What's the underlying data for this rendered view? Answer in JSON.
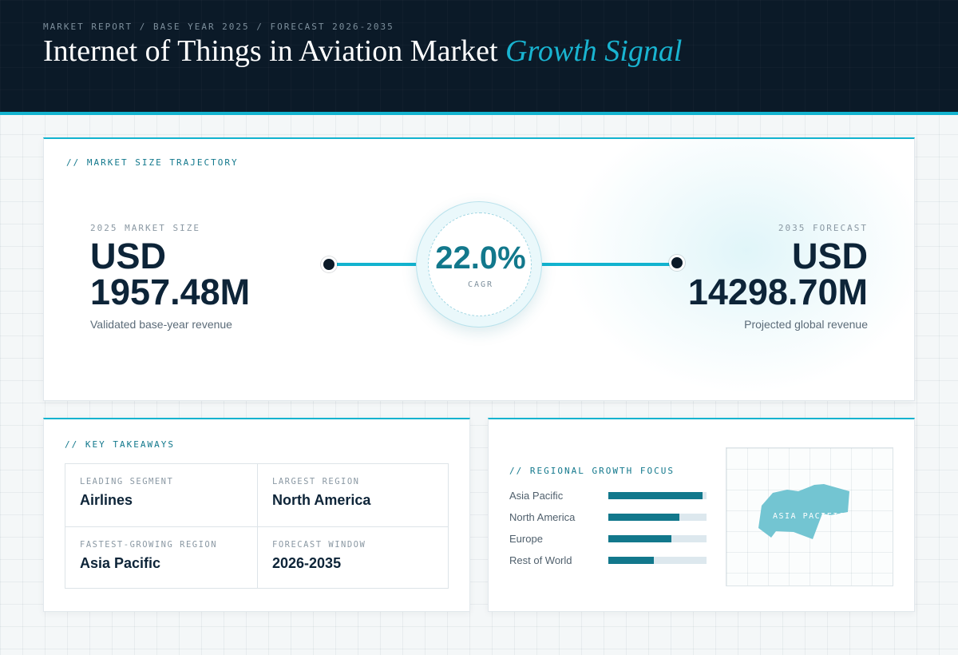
{
  "header": {
    "breadcrumb": "MARKET REPORT / BASE YEAR 2025 / FORECAST 2026-2035",
    "title": "Internet of Things in Aviation Market",
    "title_accent": "Growth Signal"
  },
  "trajectory": {
    "label": "// MARKET SIZE TRAJECTORY",
    "start": {
      "eyebrow": "2025 MARKET SIZE",
      "currency": "USD",
      "value": "1957.48M",
      "subtitle": "Validated base-year revenue"
    },
    "cagr": {
      "value": "22.0%",
      "label": "CAGR"
    },
    "end": {
      "eyebrow": "2035 FORECAST",
      "currency": "USD",
      "value": "14298.70M",
      "subtitle": "Projected global revenue"
    }
  },
  "takeaways": {
    "label": "// KEY TAKEAWAYS",
    "items": [
      {
        "eyebrow": "LEADING SEGMENT",
        "value": "Airlines"
      },
      {
        "eyebrow": "LARGEST REGION",
        "value": "North America"
      },
      {
        "eyebrow": "FASTEST-GROWING REGION",
        "value": "Asia Pacific"
      },
      {
        "eyebrow": "FORECAST WINDOW",
        "value": "2026-2035"
      }
    ]
  },
  "regional": {
    "label": "// REGIONAL GROWTH FOCUS",
    "bars": [
      {
        "name": "Asia Pacific",
        "share": 0.96
      },
      {
        "name": "North America",
        "share": 0.72
      },
      {
        "name": "Europe",
        "share": 0.64
      },
      {
        "name": "Rest of World",
        "share": 0.46
      }
    ],
    "map_label": "ASIA PACIFIC"
  },
  "colors": {
    "accent": "#12b3cf",
    "accent_dark": "#12788c",
    "navy": "#0b1a28",
    "text_dark": "#0d2438"
  }
}
